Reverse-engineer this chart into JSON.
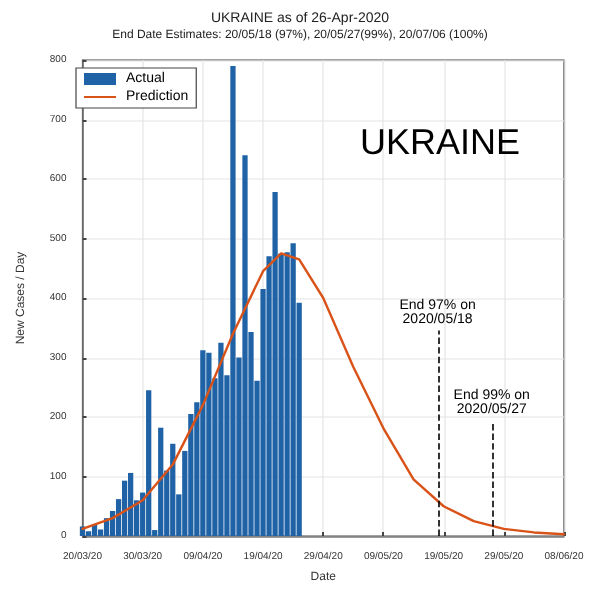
{
  "chart_data": {
    "type": "bar",
    "title": "UKRAINE as of 26-Apr-2020",
    "subtitle": "End Date Estimates: 20/05/18 (97%), 20/05/27(99%), 20/07/06 (100%)",
    "xlabel": "Date",
    "ylabel": "New Cases / Day",
    "annotations": [
      "UKRAINE"
    ],
    "x": [
      "2020-03-20",
      "2020-03-21",
      "2020-03-22",
      "2020-03-23",
      "2020-03-24",
      "2020-03-25",
      "2020-03-26",
      "2020-03-27",
      "2020-03-28",
      "2020-03-29",
      "2020-03-30",
      "2020-03-31",
      "2020-04-01",
      "2020-04-02",
      "2020-04-03",
      "2020-04-04",
      "2020-04-05",
      "2020-04-06",
      "2020-04-07",
      "2020-04-08",
      "2020-04-09",
      "2020-04-10",
      "2020-04-11",
      "2020-04-12",
      "2020-04-13",
      "2020-04-14",
      "2020-04-15",
      "2020-04-16",
      "2020-04-17",
      "2020-04-18",
      "2020-04-19",
      "2020-04-20",
      "2020-04-21",
      "2020-04-22",
      "2020-04-23",
      "2020-04-24",
      "2020-04-25"
    ],
    "series": [
      {
        "name": "Actual",
        "color": "#1f63a6",
        "values": [
          16,
          8,
          20,
          11,
          30,
          42,
          62,
          93,
          106,
          60,
          73,
          245,
          10,
          182,
          110,
          155,
          70,
          143,
          205,
          225,
          312,
          308,
          265,
          325,
          270,
          790,
          300,
          640,
          343,
          261,
          415,
          470,
          578,
          475,
          477,
          492,
          392
        ]
      },
      {
        "name": "Prediction",
        "type": "line",
        "color": "#d95319",
        "x": [
          "2020-03-20",
          "2020-03-25",
          "2020-03-30",
          "2020-04-04",
          "2020-04-09",
          "2020-04-14",
          "2020-04-19",
          "2020-04-22",
          "2020-04-25",
          "2020-04-29",
          "2020-05-04",
          "2020-05-09",
          "2020-05-14",
          "2020-05-19",
          "2020-05-24",
          "2020-05-29",
          "2020-06-03",
          "2020-06-08"
        ],
        "values": [
          12,
          30,
          60,
          120,
          220,
          340,
          445,
          475,
          465,
          400,
          284,
          181,
          95,
          50,
          25,
          12,
          6,
          3
        ]
      }
    ],
    "ref_lines": [
      {
        "axis": "x",
        "value": "2020-05-18",
        "label": "End 97% on\n2020/05/18",
        "color": "#000000",
        "line_style": "dashed"
      },
      {
        "axis": "x",
        "value": "2020-05-27",
        "label": "End 99% on\n2020/05/27",
        "color": "#000000",
        "line_style": "dashed"
      }
    ],
    "xlim": [
      "2020-03-20",
      "2020-06-08"
    ],
    "xticks": [
      {
        "value": "2020-03-20",
        "label": "20/03/20"
      },
      {
        "value": "2020-03-30",
        "label": "30/03/20"
      },
      {
        "value": "2020-04-09",
        "label": "09/04/20"
      },
      {
        "value": "2020-04-19",
        "label": "19/04/20"
      },
      {
        "value": "2020-04-29",
        "label": "29/04/20"
      },
      {
        "value": "2020-05-09",
        "label": "09/05/20"
      },
      {
        "value": "2020-05-19",
        "label": "19/05/20"
      },
      {
        "value": "2020-05-29",
        "label": "29/05/20"
      },
      {
        "value": "2020-06-08",
        "label": "08/06/20"
      }
    ],
    "ylim": [
      0,
      800
    ],
    "yticks": [
      0,
      100,
      200,
      300,
      400,
      500,
      600,
      700,
      800
    ],
    "grid": true,
    "legend": "top left",
    "marker": "none",
    "line_style": "solid"
  }
}
